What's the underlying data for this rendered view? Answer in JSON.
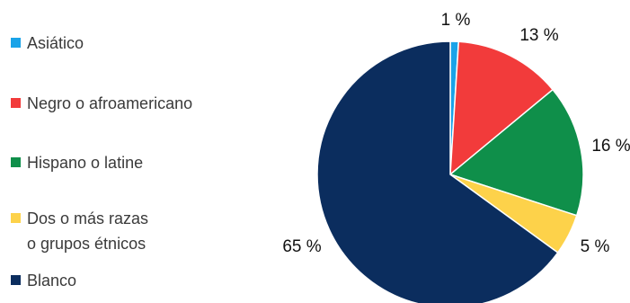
{
  "chart_data": {
    "type": "pie",
    "title": "",
    "start_angle_deg": 0,
    "direction": "clockwise",
    "slices": [
      {
        "name": "Asiático",
        "value": 1,
        "label": "1 %",
        "color": "#1aa3e8"
      },
      {
        "name": "Negro o afroamericano",
        "value": 13,
        "label": "13 %",
        "color": "#f23b3b"
      },
      {
        "name": "Hispano o latine",
        "value": 16,
        "label": "16 %",
        "color": "#0f8f4a"
      },
      {
        "name": "Dos o más razas\no grupos étnicos",
        "value": 5,
        "label": "5 %",
        "color": "#fdd24a"
      },
      {
        "name": "Blanco",
        "value": 65,
        "label": "65 %",
        "color": "#0b2d5e"
      }
    ],
    "legend": {
      "placement": "left",
      "items": [
        {
          "label": "Asiático",
          "color": "#1aa3e8"
        },
        {
          "label": "Negro o afroamericano",
          "color": "#f23b3b"
        },
        {
          "label": "Hispano o latine",
          "color": "#0f8f4a"
        },
        {
          "label": "Dos o más razas\no grupos étnicos",
          "color": "#fdd24a"
        },
        {
          "label": "Blanco",
          "color": "#0b2d5e"
        }
      ]
    }
  }
}
